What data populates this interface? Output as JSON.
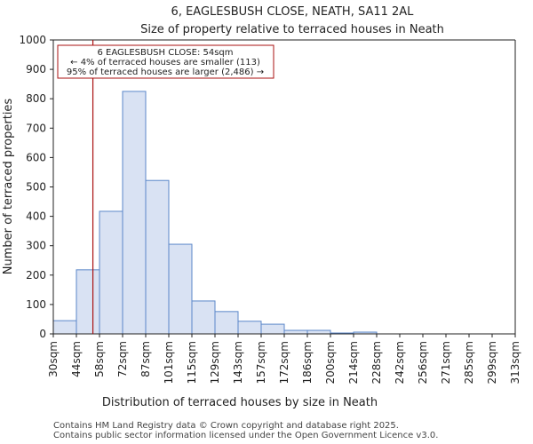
{
  "chart_data": {
    "type": "histogram",
    "title": "6, EAGLESBUSH CLOSE, NEATH, SA11 2AL",
    "subtitle": "Size of property relative to terraced houses in Neath",
    "xlabel": "Distribution of terraced houses by size in Neath",
    "ylabel": "Number of terraced properties",
    "ylim": [
      0,
      1000
    ],
    "yticks": [
      0,
      100,
      200,
      300,
      400,
      500,
      600,
      700,
      800,
      900,
      1000
    ],
    "categories": [
      "30sqm",
      "44sqm",
      "58sqm",
      "72sqm",
      "87sqm",
      "101sqm",
      "115sqm",
      "129sqm",
      "143sqm",
      "157sqm",
      "172sqm",
      "186sqm",
      "200sqm",
      "214sqm",
      "228sqm",
      "242sqm",
      "256sqm",
      "271sqm",
      "285sqm",
      "299sqm",
      "313sqm"
    ],
    "values": [
      45,
      218,
      417,
      825,
      522,
      305,
      112,
      76,
      43,
      33,
      12,
      12,
      3,
      6,
      0,
      0,
      0,
      0,
      0,
      0
    ],
    "bar_color": "#d9e2f3",
    "bar_edge_color": "#5b87c9",
    "marker": {
      "value_sqm": 54,
      "color": "#aa1111"
    },
    "annotation": {
      "line1": "6 EAGLESBUSH CLOSE: 54sqm",
      "line2": "← 4% of terraced houses are smaller (113)",
      "line3": "95% of terraced houses are larger (2,486) →"
    }
  },
  "footer": {
    "line1": "Contains HM Land Registry data © Crown copyright and database right 2025.",
    "line2": "Contains public sector information licensed under the Open Government Licence v3.0."
  }
}
